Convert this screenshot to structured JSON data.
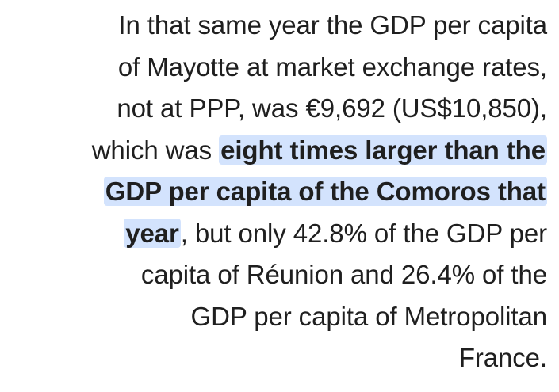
{
  "passage": {
    "lines": [
      {
        "text": "In that same year the GDP per capita"
      },
      {
        "text": "of Mayotte at market exchange rates,"
      },
      {
        "text": "not at PPP, was €9,692 (US$10,850),"
      },
      {
        "before": "which was ",
        "highlight": "eight times larger than the"
      },
      {
        "highlight": "GDP per capita of the Comoros that"
      },
      {
        "highlight": "year",
        "after": ", but only 42.8% of the GDP per"
      },
      {
        "text": "capita of Réunion and 26.4% of the"
      },
      {
        "text": "GDP per capita of Metropolitan"
      },
      {
        "text": "France."
      }
    ],
    "highlight_color": "#d3e3fd",
    "text_color": "#1f1f1f"
  }
}
